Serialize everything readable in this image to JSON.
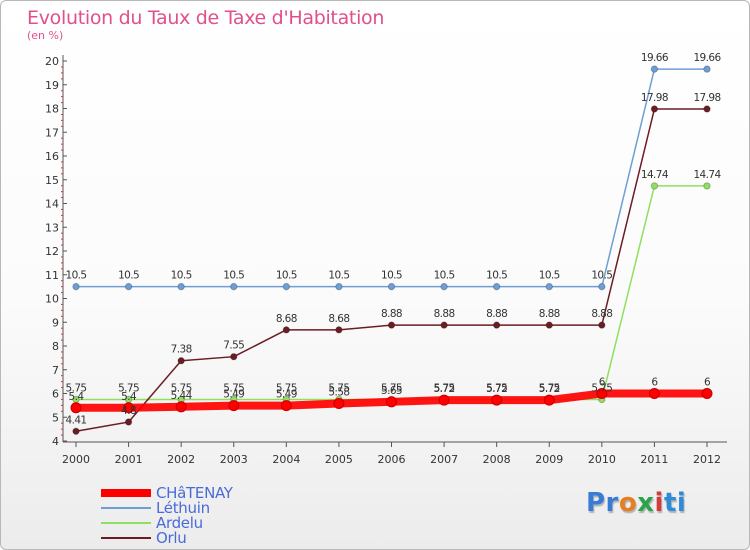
{
  "chart_data": {
    "type": "line",
    "title": "Evolution du Taux de Taxe d'Habitation",
    "subtitle": "(en %)",
    "xlabel": "",
    "ylabel": "",
    "categories": [
      "2000",
      "2001",
      "2002",
      "2003",
      "2004",
      "2005",
      "2006",
      "2007",
      "2008",
      "2009",
      "2010",
      "2011",
      "2012"
    ],
    "ylim": [
      4,
      20
    ],
    "yticks": [
      4,
      5,
      6,
      7,
      8,
      9,
      10,
      11,
      12,
      13,
      14,
      15,
      16,
      17,
      18,
      19,
      20
    ],
    "grid": false,
    "legend_position": "bottom-left",
    "series": [
      {
        "name": "CHâTENAY",
        "color": "#ff0000",
        "values": [
          5.4,
          5.4,
          5.44,
          5.49,
          5.49,
          5.58,
          5.65,
          5.72,
          5.72,
          5.72,
          6,
          6,
          6
        ],
        "labels": [
          "5.4",
          "5.4",
          "5.44",
          "5.49",
          "5.49",
          "5.58",
          "5.65",
          "5.72",
          "5.72",
          "5.72",
          "6",
          "6",
          "6"
        ]
      },
      {
        "name": "Léthuin",
        "color": "#6e9ed6",
        "values": [
          10.5,
          10.5,
          10.5,
          10.5,
          10.5,
          10.5,
          10.5,
          10.5,
          10.5,
          10.5,
          10.5,
          19.66,
          19.66
        ],
        "labels": [
          "10.5",
          "10.5",
          "10.5",
          "10.5",
          "10.5",
          "10.5",
          "10.5",
          "10.5",
          "10.5",
          "10.5",
          "10.5",
          "19.66",
          "19.66"
        ]
      },
      {
        "name": "Ardelu",
        "color": "#8fe060",
        "values": [
          5.75,
          5.75,
          5.75,
          5.75,
          5.75,
          5.75,
          5.75,
          5.75,
          5.75,
          5.75,
          5.75,
          14.74,
          14.74
        ],
        "labels": [
          "5.75",
          "5.75",
          "5.75",
          "5.75",
          "5.75",
          "5.75",
          "5.75",
          "5.75",
          "5.75",
          "5.75",
          "5.75",
          "14.74",
          "14.74"
        ]
      },
      {
        "name": "Orlu",
        "color": "#6b1d24",
        "values": [
          4.41,
          4.8,
          7.38,
          7.55,
          8.68,
          8.68,
          8.88,
          8.88,
          8.88,
          8.88,
          8.88,
          17.98,
          17.98
        ],
        "labels": [
          "4.41",
          "4.8",
          "7.38",
          "7.55",
          "8.68",
          "8.68",
          "8.88",
          "8.88",
          "8.88",
          "8.88",
          "8.88",
          "17.98",
          "17.98"
        ]
      }
    ]
  },
  "logo": {
    "letters": [
      "Pr",
      "o",
      "x",
      "i",
      "ti"
    ]
  }
}
